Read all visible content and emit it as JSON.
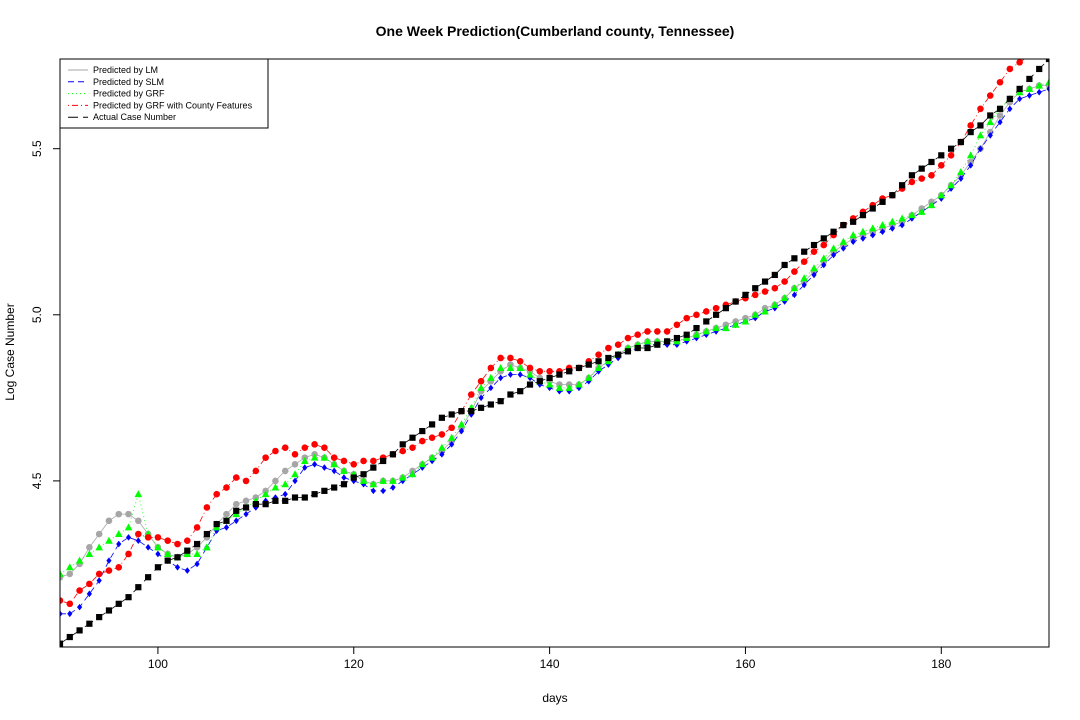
{
  "chart_data": {
    "type": "scatter",
    "title": "One Week Prediction(Cumberland county, Tennessee)",
    "xlabel": "days",
    "ylabel": "Log Case Number",
    "xlim": [
      90,
      191
    ],
    "ylim": [
      4.0,
      5.77
    ],
    "x_ticks": [
      100,
      120,
      140,
      160,
      180
    ],
    "y_ticks": [
      4.5,
      5.0,
      5.5
    ],
    "x_tick_labels": [
      "100",
      "120",
      "140",
      "160",
      "180"
    ],
    "y_tick_labels": [
      "4.5",
      "5.0",
      "5.5"
    ],
    "legend_position": "top-left",
    "grid": false,
    "x": [
      90,
      91,
      92,
      93,
      94,
      95,
      96,
      97,
      98,
      99,
      100,
      101,
      102,
      103,
      104,
      105,
      106,
      107,
      108,
      109,
      110,
      111,
      112,
      113,
      114,
      115,
      116,
      117,
      118,
      119,
      120,
      121,
      122,
      123,
      124,
      125,
      126,
      127,
      128,
      129,
      130,
      131,
      132,
      133,
      134,
      135,
      136,
      137,
      138,
      139,
      140,
      141,
      142,
      143,
      144,
      145,
      146,
      147,
      148,
      149,
      150,
      151,
      152,
      153,
      154,
      155,
      156,
      157,
      158,
      159,
      160,
      161,
      162,
      163,
      164,
      165,
      166,
      167,
      168,
      169,
      170,
      171,
      172,
      173,
      174,
      175,
      176,
      177,
      178,
      179,
      180,
      181,
      182,
      183,
      184,
      185,
      186,
      187,
      188,
      189,
      190,
      191
    ],
    "series": [
      {
        "name": "Predicted by LM",
        "color": "#a6a6a6",
        "marker": "circle",
        "line": "solid",
        "values": [
          4.21,
          4.22,
          4.25,
          4.3,
          4.34,
          4.38,
          4.4,
          4.4,
          4.38,
          4.34,
          4.3,
          4.28,
          4.27,
          4.28,
          4.3,
          4.33,
          4.37,
          4.4,
          4.43,
          4.44,
          4.45,
          4.47,
          4.5,
          4.53,
          4.55,
          4.57,
          4.58,
          4.57,
          4.55,
          4.53,
          4.52,
          4.5,
          4.49,
          4.5,
          4.5,
          4.51,
          4.53,
          4.55,
          4.57,
          4.59,
          4.62,
          4.66,
          4.71,
          4.77,
          4.8,
          4.83,
          4.85,
          4.84,
          4.83,
          4.81,
          4.8,
          4.79,
          4.79,
          4.79,
          4.81,
          4.84,
          4.86,
          4.88,
          4.9,
          4.91,
          4.92,
          4.92,
          4.92,
          4.92,
          4.93,
          4.94,
          4.95,
          4.96,
          4.97,
          4.98,
          4.99,
          5.0,
          5.02,
          5.03,
          5.05,
          5.08,
          5.1,
          5.13,
          5.16,
          5.19,
          5.21,
          5.23,
          5.24,
          5.25,
          5.26,
          5.27,
          5.28,
          5.3,
          5.32,
          5.34,
          5.36,
          5.39,
          5.42,
          5.46,
          5.5,
          5.55,
          5.6,
          5.64,
          5.67,
          5.68,
          5.69,
          5.69
        ]
      },
      {
        "name": "Predicted by SLM",
        "color": "#0000ff",
        "marker": "diamond",
        "line": "dashed",
        "values": [
          4.1,
          4.1,
          4.12,
          4.16,
          4.2,
          4.26,
          4.31,
          4.33,
          4.32,
          4.3,
          4.28,
          4.26,
          4.24,
          4.23,
          4.25,
          4.3,
          4.35,
          4.36,
          4.38,
          4.4,
          4.42,
          4.44,
          4.45,
          4.46,
          4.5,
          4.54,
          4.55,
          4.54,
          4.53,
          4.51,
          4.5,
          4.49,
          4.47,
          4.47,
          4.48,
          4.5,
          4.52,
          4.54,
          4.56,
          4.58,
          4.61,
          4.65,
          4.7,
          4.75,
          4.78,
          4.81,
          4.82,
          4.82,
          4.81,
          4.79,
          4.78,
          4.77,
          4.77,
          4.78,
          4.8,
          4.83,
          4.85,
          4.87,
          4.89,
          4.9,
          4.91,
          4.91,
          4.91,
          4.91,
          4.92,
          4.93,
          4.94,
          4.95,
          4.96,
          4.97,
          4.98,
          4.99,
          5.01,
          5.02,
          5.04,
          5.06,
          5.09,
          5.12,
          5.15,
          5.18,
          5.2,
          5.22,
          5.23,
          5.24,
          5.25,
          5.26,
          5.27,
          5.29,
          5.31,
          5.33,
          5.35,
          5.38,
          5.41,
          5.45,
          5.5,
          5.54,
          5.58,
          5.62,
          5.65,
          5.66,
          5.67,
          5.68
        ]
      },
      {
        "name": "Predicted by GRF",
        "color": "#00ff00",
        "marker": "triangle",
        "line": "dotted",
        "values": [
          4.22,
          4.24,
          4.26,
          4.28,
          4.3,
          4.32,
          4.34,
          4.36,
          4.46,
          4.34,
          4.3,
          4.28,
          4.27,
          4.28,
          4.28,
          4.3,
          4.36,
          4.38,
          4.4,
          4.42,
          4.44,
          4.46,
          4.48,
          4.49,
          4.52,
          4.56,
          4.57,
          4.57,
          4.55,
          4.53,
          4.52,
          4.5,
          4.49,
          4.5,
          4.5,
          4.51,
          4.52,
          4.55,
          4.57,
          4.6,
          4.63,
          4.67,
          4.72,
          4.78,
          4.81,
          4.84,
          4.84,
          4.84,
          4.82,
          4.8,
          4.79,
          4.78,
          4.78,
          4.79,
          4.81,
          4.84,
          4.86,
          4.88,
          4.9,
          4.91,
          4.92,
          4.92,
          4.92,
          4.92,
          4.93,
          4.94,
          4.95,
          4.96,
          4.96,
          4.97,
          4.98,
          5.0,
          5.01,
          5.03,
          5.05,
          5.08,
          5.11,
          5.14,
          5.17,
          5.2,
          5.22,
          5.24,
          5.25,
          5.26,
          5.27,
          5.28,
          5.29,
          5.3,
          5.31,
          5.33,
          5.36,
          5.39,
          5.43,
          5.48,
          5.54,
          5.58,
          5.62,
          5.65,
          5.67,
          5.68,
          5.69,
          5.7
        ]
      },
      {
        "name": "Predicted by GRF with County Features",
        "color": "#ff0000",
        "marker": "circle",
        "line": "dotdash",
        "values": [
          4.14,
          4.13,
          4.17,
          4.19,
          4.22,
          4.23,
          4.24,
          4.28,
          4.34,
          4.33,
          4.33,
          4.32,
          4.31,
          4.32,
          4.36,
          4.42,
          4.46,
          4.48,
          4.51,
          4.5,
          4.53,
          4.57,
          4.59,
          4.6,
          4.58,
          4.6,
          4.61,
          4.6,
          4.57,
          4.56,
          4.55,
          4.56,
          4.56,
          4.57,
          4.58,
          4.59,
          4.6,
          4.62,
          4.63,
          4.64,
          4.66,
          4.71,
          4.76,
          4.8,
          4.84,
          4.87,
          4.87,
          4.86,
          4.84,
          4.83,
          4.83,
          4.83,
          4.84,
          4.84,
          4.86,
          4.88,
          4.9,
          4.91,
          4.93,
          4.94,
          4.95,
          4.95,
          4.95,
          4.97,
          4.99,
          5.0,
          5.01,
          5.02,
          5.03,
          5.04,
          5.05,
          5.06,
          5.07,
          5.08,
          5.1,
          5.13,
          5.16,
          5.19,
          5.21,
          5.24,
          5.27,
          5.29,
          5.31,
          5.33,
          5.35,
          5.36,
          5.38,
          5.4,
          5.41,
          5.42,
          5.45,
          5.48,
          5.52,
          5.57,
          5.62,
          5.66,
          5.7,
          5.74,
          5.76,
          5.78,
          5.79,
          5.8
        ]
      },
      {
        "name": "Actual Case Number",
        "color": "#000000",
        "marker": "square",
        "line": "longdash",
        "values": [
          4.01,
          4.03,
          4.05,
          4.07,
          4.09,
          4.11,
          4.13,
          4.15,
          4.18,
          4.21,
          4.24,
          4.26,
          4.27,
          4.29,
          4.31,
          4.34,
          4.37,
          4.38,
          4.41,
          4.42,
          4.43,
          4.43,
          4.44,
          4.44,
          4.45,
          4.45,
          4.46,
          4.47,
          4.48,
          4.49,
          4.51,
          4.52,
          4.54,
          4.56,
          4.58,
          4.61,
          4.63,
          4.65,
          4.67,
          4.69,
          4.7,
          4.71,
          4.71,
          4.72,
          4.73,
          4.74,
          4.76,
          4.77,
          4.79,
          4.8,
          4.81,
          4.82,
          4.83,
          4.84,
          4.85,
          4.86,
          4.87,
          4.88,
          4.89,
          4.9,
          4.9,
          4.91,
          4.92,
          4.93,
          4.94,
          4.96,
          4.98,
          5.0,
          5.02,
          5.04,
          5.06,
          5.08,
          5.1,
          5.12,
          5.15,
          5.17,
          5.19,
          5.21,
          5.23,
          5.25,
          5.27,
          5.28,
          5.3,
          5.32,
          5.34,
          5.36,
          5.39,
          5.42,
          5.44,
          5.46,
          5.48,
          5.5,
          5.52,
          5.55,
          5.57,
          5.6,
          5.62,
          5.65,
          5.68,
          5.71,
          5.74,
          5.77
        ]
      }
    ]
  }
}
